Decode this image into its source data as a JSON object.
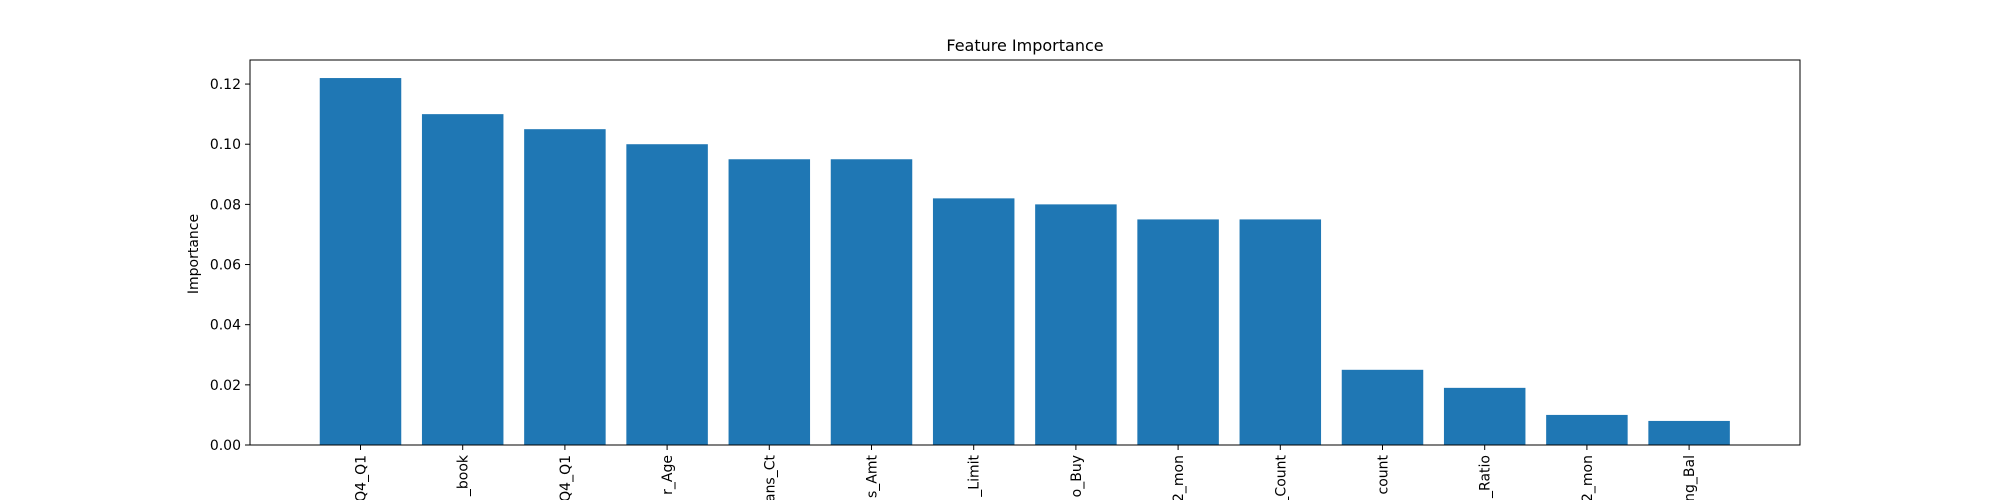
{
  "chart_data": {
    "type": "bar",
    "title": "Feature Importance",
    "xlabel": "",
    "ylabel": "Importance",
    "categories": [
      "Q4_Q1",
      "_book",
      "Q4_Q1",
      "r_Age",
      "ans_Ct",
      "s_Amt",
      "_Limit",
      "o_Buy",
      "2_mon",
      "_Count",
      "count",
      "_Ratio",
      "2_mon",
      "ng_Bal"
    ],
    "values": [
      0.122,
      0.11,
      0.105,
      0.1,
      0.095,
      0.095,
      0.082,
      0.08,
      0.075,
      0.075,
      0.025,
      0.019,
      0.01,
      0.008
    ],
    "yticks": [
      0.0,
      0.02,
      0.04,
      0.06,
      0.08,
      0.1,
      0.12
    ],
    "ytick_labels": [
      "0.00",
      "0.02",
      "0.04",
      "0.06",
      "0.08",
      "0.10",
      "0.12"
    ],
    "ylim": [
      0,
      0.128
    ],
    "grid": false,
    "colors": {
      "bar": "#1f77b4",
      "axes": "#000000",
      "background": "#ffffff"
    }
  }
}
